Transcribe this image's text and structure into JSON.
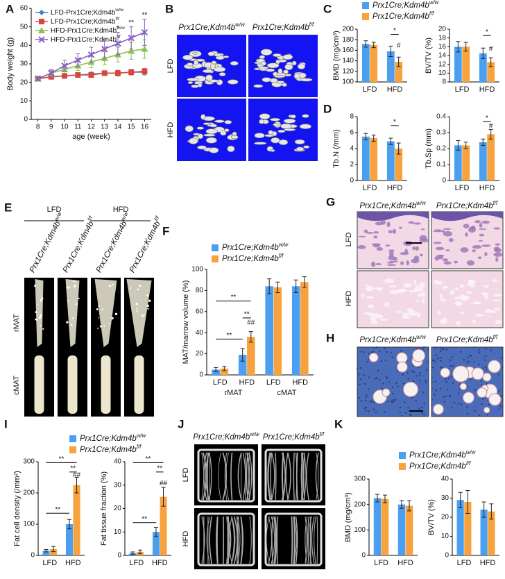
{
  "panel_labels": [
    "A",
    "B",
    "C",
    "D",
    "E",
    "F",
    "G",
    "H",
    "I",
    "J",
    "K"
  ],
  "chart_data": [
    {
      "type": "line",
      "xlabel": "age (week)",
      "ylabel": "Body weight (g)",
      "x": [
        8,
        9,
        10,
        11,
        12,
        13,
        14,
        15,
        16
      ],
      "xlim": [
        7.5,
        16.5
      ],
      "xticks": [
        8,
        9,
        10,
        11,
        12,
        13,
        14,
        15,
        16
      ],
      "ylim": [
        0,
        60
      ],
      "yticks": [
        0,
        10,
        20,
        30,
        40,
        50,
        60
      ],
      "series": [
        {
          "name": "LFD-Prx1Cre;Kdm4bw/w",
          "color": "#3f7fd0",
          "marker": "diamond",
          "values": [
            22,
            23,
            23.5,
            24,
            24.5,
            25,
            25,
            25.5,
            25.5
          ],
          "errors": [
            1,
            1,
            1,
            1,
            1,
            1,
            1.5,
            1.5,
            1.5
          ]
        },
        {
          "name": "LFD-Prx1Cre;Kdm4bf/f",
          "color": "#d9463e",
          "marker": "square",
          "values": [
            22,
            23,
            23.5,
            24,
            24,
            25,
            25,
            25.5,
            26
          ],
          "errors": [
            1,
            1,
            1,
            1,
            1,
            1,
            1.5,
            1.5,
            1.5
          ]
        },
        {
          "name": "HFD-Prx1Cre;Kdm4bw/w",
          "color": "#8cc152",
          "marker": "triangle",
          "values": [
            22,
            25,
            27,
            29,
            31,
            33,
            35,
            37,
            38
          ],
          "errors": [
            1,
            1.5,
            2,
            2.5,
            3,
            3.5,
            4,
            4.5,
            5
          ]
        },
        {
          "name": "HFD-Prx1Cre;Kdm4bf/f",
          "color": "#8a5fc2",
          "marker": "x",
          "values": [
            22,
            25,
            29,
            32,
            35,
            38,
            41,
            44,
            47
          ],
          "errors": [
            1,
            2,
            3,
            3.5,
            4,
            5,
            6,
            6,
            7
          ]
        }
      ],
      "annotations": [
        {
          "x": 14,
          "text": "*"
        },
        {
          "x": 15,
          "text": "**"
        },
        {
          "x": 16,
          "text": "**"
        }
      ]
    },
    {
      "type": "bar",
      "ylabel": "BMD (mg/cm³)",
      "categories": [
        "LFD",
        "HFD"
      ],
      "ylim": [
        100,
        200
      ],
      "yticks": [
        100,
        120,
        140,
        160,
        180,
        200
      ],
      "series": [
        {
          "name": "Prx1Cre;Kdm4bw/w",
          "color": "#4a9ff0",
          "values": [
            172,
            158
          ],
          "errors": [
            6,
            10
          ]
        },
        {
          "name": "Prx1Cre;Kdm4bf/f",
          "color": "#f7a23c",
          "values": [
            170,
            138
          ],
          "errors": [
            5,
            9
          ]
        }
      ],
      "annotations": [
        {
          "text": "*"
        },
        {
          "text": "#"
        }
      ]
    },
    {
      "type": "bar",
      "ylabel": "BV/TV (%)",
      "categories": [
        "LFD",
        "HFD"
      ],
      "ylim": [
        8,
        20
      ],
      "yticks": [
        8,
        10,
        12,
        14,
        16,
        18,
        20
      ],
      "series": [
        {
          "color": "#4a9ff0",
          "values": [
            16,
            14.5
          ],
          "errors": [
            1.2,
            1.2
          ]
        },
        {
          "color": "#f7a23c",
          "values": [
            16,
            12.5
          ],
          "errors": [
            1,
            1
          ]
        }
      ],
      "annotations": [
        {
          "text": "*"
        },
        {
          "text": "#"
        }
      ]
    },
    {
      "type": "bar",
      "ylabel": "Tb.N (/mm)",
      "categories": [
        "LFD",
        "HFD"
      ],
      "ylim": [
        0,
        8
      ],
      "yticks": [
        0,
        2,
        4,
        6,
        8
      ],
      "series": [
        {
          "color": "#4a9ff0",
          "values": [
            5.5,
            4.9
          ],
          "errors": [
            0.4,
            0.4
          ]
        },
        {
          "color": "#f7a23c",
          "values": [
            5.3,
            4.0
          ],
          "errors": [
            0.4,
            0.7
          ]
        }
      ],
      "annotations": [
        {
          "text": "*"
        }
      ]
    },
    {
      "type": "bar",
      "ylabel": "Tb.Sp (mm)",
      "categories": [
        "LFD",
        "HFD"
      ],
      "ylim": [
        0,
        0.4
      ],
      "yticks": [
        0,
        0.1,
        0.2,
        0.3,
        0.4
      ],
      "series": [
        {
          "color": "#4a9ff0",
          "values": [
            0.22,
            0.24
          ],
          "errors": [
            0.03,
            0.02
          ]
        },
        {
          "color": "#f7a23c",
          "values": [
            0.22,
            0.29
          ],
          "errors": [
            0.02,
            0.03
          ]
        }
      ],
      "annotations": [
        {
          "text": "*"
        },
        {
          "text": "#"
        }
      ]
    },
    {
      "type": "bar",
      "ylabel": "MAT/marrow volume (%)",
      "categories": [
        "LFD",
        "HFD",
        "LFD",
        "HFD"
      ],
      "groups": [
        "rMAT",
        "cMAT"
      ],
      "ylim": [
        0,
        100
      ],
      "yticks": [
        0,
        20,
        40,
        60,
        80,
        100
      ],
      "series": [
        {
          "name": "Prx1Cre;Kdm4bw/w",
          "color": "#4a9ff0",
          "values": [
            5,
            19,
            84,
            84
          ],
          "errors": [
            2,
            6,
            7,
            6
          ]
        },
        {
          "name": "Prx1Cre;Kdm4bf/f",
          "color": "#f7a23c",
          "values": [
            6,
            36,
            83,
            88
          ],
          "errors": [
            2,
            5,
            5,
            5
          ]
        }
      ],
      "annotations": [
        {
          "text": "**"
        },
        {
          "text": "**"
        },
        {
          "text": "**"
        },
        {
          "text": "##"
        }
      ]
    },
    {
      "type": "bar",
      "ylabel": "Fat cell density (/mm²)",
      "categories": [
        "LFD",
        "HFD"
      ],
      "ylim": [
        0,
        300
      ],
      "yticks": [
        0,
        100,
        200,
        300
      ],
      "series": [
        {
          "name": "Prx1Cre;Kdm4bw/w",
          "color": "#4a9ff0",
          "values": [
            15,
            100
          ],
          "errors": [
            4,
            15
          ]
        },
        {
          "name": "Prx1Cre;Kdm4bf/f",
          "color": "#f7a23c",
          "values": [
            20,
            225
          ],
          "errors": [
            8,
            25
          ]
        }
      ],
      "annotations": [
        {
          "text": "**"
        },
        {
          "text": "**"
        },
        {
          "text": "**"
        },
        {
          "text": "##"
        }
      ]
    },
    {
      "type": "bar",
      "ylabel": "Fat tissue fraction (%)",
      "categories": [
        "LFD",
        "HFD"
      ],
      "ylim": [
        0,
        40
      ],
      "yticks": [
        0,
        10,
        20,
        30,
        40
      ],
      "series": [
        {
          "color": "#4a9ff0",
          "values": [
            1,
            10
          ],
          "errors": [
            0.5,
            2
          ]
        },
        {
          "color": "#f7a23c",
          "values": [
            1.5,
            25
          ],
          "errors": [
            0.8,
            4
          ]
        }
      ],
      "annotations": [
        {
          "text": "**"
        },
        {
          "text": "**"
        },
        {
          "text": "**"
        },
        {
          "text": "##"
        }
      ]
    },
    {
      "type": "bar",
      "ylabel": "BMD (mg/cm³)",
      "categories": [
        "LFD",
        "HFD"
      ],
      "ylim": [
        0,
        300
      ],
      "yticks": [
        0,
        100,
        200,
        300
      ],
      "series": [
        {
          "name": "Prx1Cre;Kdm4bw/w",
          "color": "#4a9ff0",
          "values": [
            225,
            200
          ],
          "errors": [
            15,
            15
          ]
        },
        {
          "name": "Prx1Cre;Kdm4bf/f",
          "color": "#f7a23c",
          "values": [
            222,
            195
          ],
          "errors": [
            15,
            20
          ]
        }
      ]
    },
    {
      "type": "bar",
      "ylabel": "BV/TV (%)",
      "categories": [
        "LFD",
        "HFD"
      ],
      "ylim": [
        0,
        40
      ],
      "yticks": [
        0,
        10,
        20,
        30,
        40
      ],
      "series": [
        {
          "color": "#4a9ff0",
          "values": [
            29,
            24
          ],
          "errors": [
            4,
            4
          ]
        },
        {
          "color": "#f7a23c",
          "values": [
            28,
            23
          ],
          "errors": [
            6,
            4
          ]
        }
      ]
    }
  ],
  "figures": {
    "B": {
      "columns": [
        "Prx1Cre;Kdm4bw/w",
        "Prx1Cre;Kdm4bf/f"
      ],
      "rows": [
        "LFD",
        "HFD"
      ]
    },
    "E": {
      "groups": [
        "LFD",
        "HFD"
      ],
      "columns": [
        "Prx1Cre;Kdm4bw/w",
        "Prx1Cre;Kdm4bf/f",
        "Prx1Cre;Kdm4bw/w",
        "Prx1Cre;Kdm4bf/f"
      ],
      "rows": [
        "rMAT",
        "cMAT"
      ]
    },
    "G": {
      "columns": [
        "Prx1Cre;Kdm4bw/w",
        "Prx1Cre;Kdm4bf/f"
      ],
      "rows": [
        "LFD",
        "HFD"
      ]
    },
    "H": {
      "columns": [
        "Prx1Cre;Kdm4bw/w",
        "Prx1Cre;Kdm4bf/f"
      ]
    },
    "J": {
      "columns": [
        "Prx1Cre;Kdm4bw/w",
        "Prx1Cre;Kdm4bf/f"
      ],
      "rows": [
        "LFD",
        "HFD"
      ]
    }
  }
}
